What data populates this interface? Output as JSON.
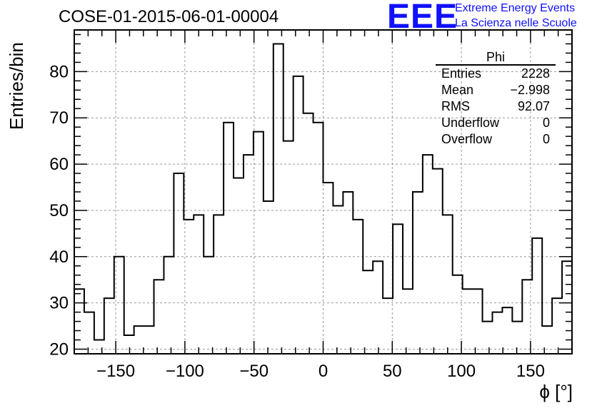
{
  "title": "COSE-01-2015-06-01-00004",
  "logo": {
    "mark": "EEE",
    "line1": "Extreme Energy Events",
    "line2": "La Scienza nelle Scuole",
    "color": "#1010ff"
  },
  "stats_box": {
    "name": "Phi",
    "rows": [
      {
        "label": "Entries",
        "value": "2228"
      },
      {
        "label": "Mean",
        "value": "−2.998"
      },
      {
        "label": "RMS",
        "value": "92.07"
      },
      {
        "label": "Underflow",
        "value": "0"
      },
      {
        "label": "Overflow",
        "value": "0"
      }
    ]
  },
  "chart_data": {
    "type": "bar",
    "histogram": true,
    "title": "COSE-01-2015-06-01-00004",
    "xlabel": "ϕ [°]",
    "ylabel": "Entries/bin",
    "xlim": [
      -180,
      180
    ],
    "ylim": [
      19,
      89
    ],
    "bin_width": 7.2,
    "xticks": [
      -150,
      -100,
      -50,
      0,
      50,
      100,
      150
    ],
    "xtick_labels": [
      "−150",
      "−100",
      "−50",
      "0",
      "50",
      "100",
      "150"
    ],
    "yticks": [
      20,
      30,
      40,
      50,
      60,
      70,
      80
    ],
    "grid": true,
    "values": [
      33,
      28,
      22,
      31,
      40,
      23,
      25,
      25,
      35,
      40,
      58,
      48,
      49,
      40,
      49,
      69,
      57,
      62,
      67,
      52,
      86,
      65,
      79,
      71,
      69,
      56,
      51,
      54,
      48,
      37,
      39,
      31,
      47,
      33,
      54,
      62,
      59,
      49,
      36,
      33,
      33,
      26,
      28,
      29,
      26,
      35,
      44,
      25,
      31,
      39
    ],
    "line_color": "#000000",
    "grid_color": "#999999"
  }
}
